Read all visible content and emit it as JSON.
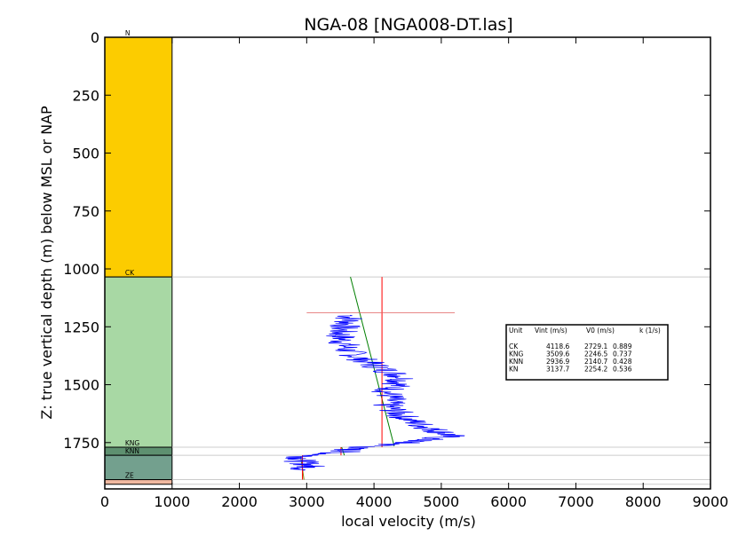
{
  "chart_data": {
    "type": "line",
    "title": "NGA-08 [NGA008-DT.las]",
    "xlabel": "local velocity (m/s)",
    "ylabel": "Z: true vertical depth (m) below MSL or NAP",
    "xlim": [
      0,
      9000
    ],
    "ylim": [
      1950,
      0
    ],
    "y_inverted": true,
    "xticks": [
      0,
      1000,
      2000,
      3000,
      4000,
      5000,
      6000,
      7000,
      8000,
      9000
    ],
    "yticks": [
      0,
      250,
      500,
      750,
      1000,
      1250,
      1500,
      1750
    ],
    "grid": false,
    "strat_column": {
      "x_range": [
        0,
        1000
      ],
      "units": [
        {
          "name": "N",
          "top": 0,
          "bottom": 1035,
          "color": "#fccc00"
        },
        {
          "name": "CK",
          "top": 1035,
          "bottom": 1770,
          "color": "#a8d8a4"
        },
        {
          "name": "KNG",
          "top": 1770,
          "bottom": 1805,
          "color": "#5e9070"
        },
        {
          "name": "KNN",
          "top": 1805,
          "bottom": 1910,
          "color": "#73a08e"
        },
        {
          "name": "ZE",
          "top": 1910,
          "bottom": 1930,
          "color": "#f0b8a0"
        }
      ]
    },
    "horizon_depths": [
      1035,
      1770,
      1805,
      1910,
      1930
    ],
    "series": [
      {
        "color": "#0000ff",
        "style": "log",
        "points": [
          [
            3650,
            1200
          ],
          [
            3620,
            1230
          ],
          [
            3520,
            1260
          ],
          [
            3500,
            1290
          ],
          [
            3550,
            1320
          ],
          [
            3600,
            1350
          ],
          [
            3750,
            1380
          ],
          [
            3950,
            1410
          ],
          [
            4200,
            1440
          ],
          [
            4450,
            1470
          ],
          [
            4350,
            1500
          ],
          [
            4200,
            1530
          ],
          [
            4250,
            1560
          ],
          [
            4200,
            1590
          ],
          [
            4350,
            1620
          ],
          [
            4500,
            1650
          ],
          [
            4750,
            1680
          ],
          [
            4950,
            1700
          ],
          [
            5150,
            1720
          ],
          [
            4700,
            1740
          ],
          [
            4350,
            1755
          ],
          [
            3650,
            1775
          ],
          [
            3550,
            1790
          ],
          [
            2950,
            1810
          ],
          [
            2900,
            1830
          ],
          [
            3050,
            1850
          ],
          [
            2950,
            1870
          ]
        ]
      }
    ],
    "fit_lines": [
      {
        "unit": "CK",
        "color": "#007f00",
        "points": [
          [
            3650,
            1035
          ],
          [
            4300,
            1765
          ]
        ]
      },
      {
        "unit": "CK",
        "color": "#ff0000",
        "points": [
          [
            4118.6,
            1035
          ],
          [
            4118.6,
            1770
          ]
        ]
      },
      {
        "unit": "KNG",
        "color": "#007f00",
        "points": [
          [
            3520,
            1770
          ],
          [
            3560,
            1805
          ]
        ]
      },
      {
        "unit": "KNG",
        "color": "#ff0000",
        "points": [
          [
            3509.6,
            1770
          ],
          [
            3509.6,
            1805
          ]
        ]
      },
      {
        "unit": "KNN",
        "color": "#7f7f00",
        "points": [
          [
            2910,
            1810
          ],
          [
            2960,
            1910
          ]
        ]
      },
      {
        "unit": "KNN",
        "color": "#ff0000",
        "points": [
          [
            2936.9,
            1805
          ],
          [
            2936.9,
            1910
          ]
        ]
      }
    ],
    "reference_cross": {
      "x1": 3000,
      "x2": 5200,
      "y": 1190,
      "color": "#e06060"
    },
    "table": {
      "header": [
        "Unit",
        "Vint (m/s)",
        "V0 (m/s)",
        "k (1/s)"
      ],
      "rows": [
        [
          "CK",
          "4118.6",
          "2729.1",
          "0.889"
        ],
        [
          "KNG",
          "3509.6",
          "2246.5",
          "0.737"
        ],
        [
          "KNN",
          "2936.9",
          "2140.7",
          "0.428"
        ],
        [
          "KN",
          "3137.7",
          "2254.2",
          "0.536"
        ]
      ]
    }
  }
}
